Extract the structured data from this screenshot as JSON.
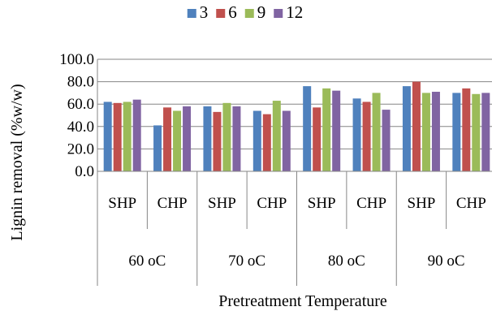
{
  "chart_data": {
    "type": "bar",
    "title": "",
    "xlabel": "Pretreatment Temperature",
    "ylabel": "Lignin removal (%w/w)",
    "ylim": [
      0,
      100
    ],
    "yticks": [
      "0.0",
      "20.0",
      "40.0",
      "60.0",
      "80.0",
      "100.0"
    ],
    "grid": true,
    "legend_position": "top",
    "groups": [
      "60 oC",
      "70 oC",
      "80 oC",
      "90 oC"
    ],
    "subcategories": [
      "SHP",
      "CHP"
    ],
    "categories": [
      "SHP",
      "CHP",
      "SHP",
      "CHP",
      "SHP",
      "CHP",
      "SHP",
      "CHP"
    ],
    "series": [
      {
        "name": "3",
        "color": "#4F81BD",
        "values": [
          62,
          41,
          58,
          54,
          76,
          65,
          76,
          70
        ]
      },
      {
        "name": "6",
        "color": "#C0504D",
        "values": [
          61,
          57,
          53,
          51,
          57,
          62,
          80,
          74
        ]
      },
      {
        "name": "9",
        "color": "#9BBB59",
        "values": [
          62,
          54,
          61,
          63,
          74,
          70,
          70,
          69
        ]
      },
      {
        "name": "12",
        "color": "#8064A2",
        "values": [
          64,
          58,
          58,
          54,
          72,
          55,
          71,
          70
        ]
      }
    ]
  }
}
